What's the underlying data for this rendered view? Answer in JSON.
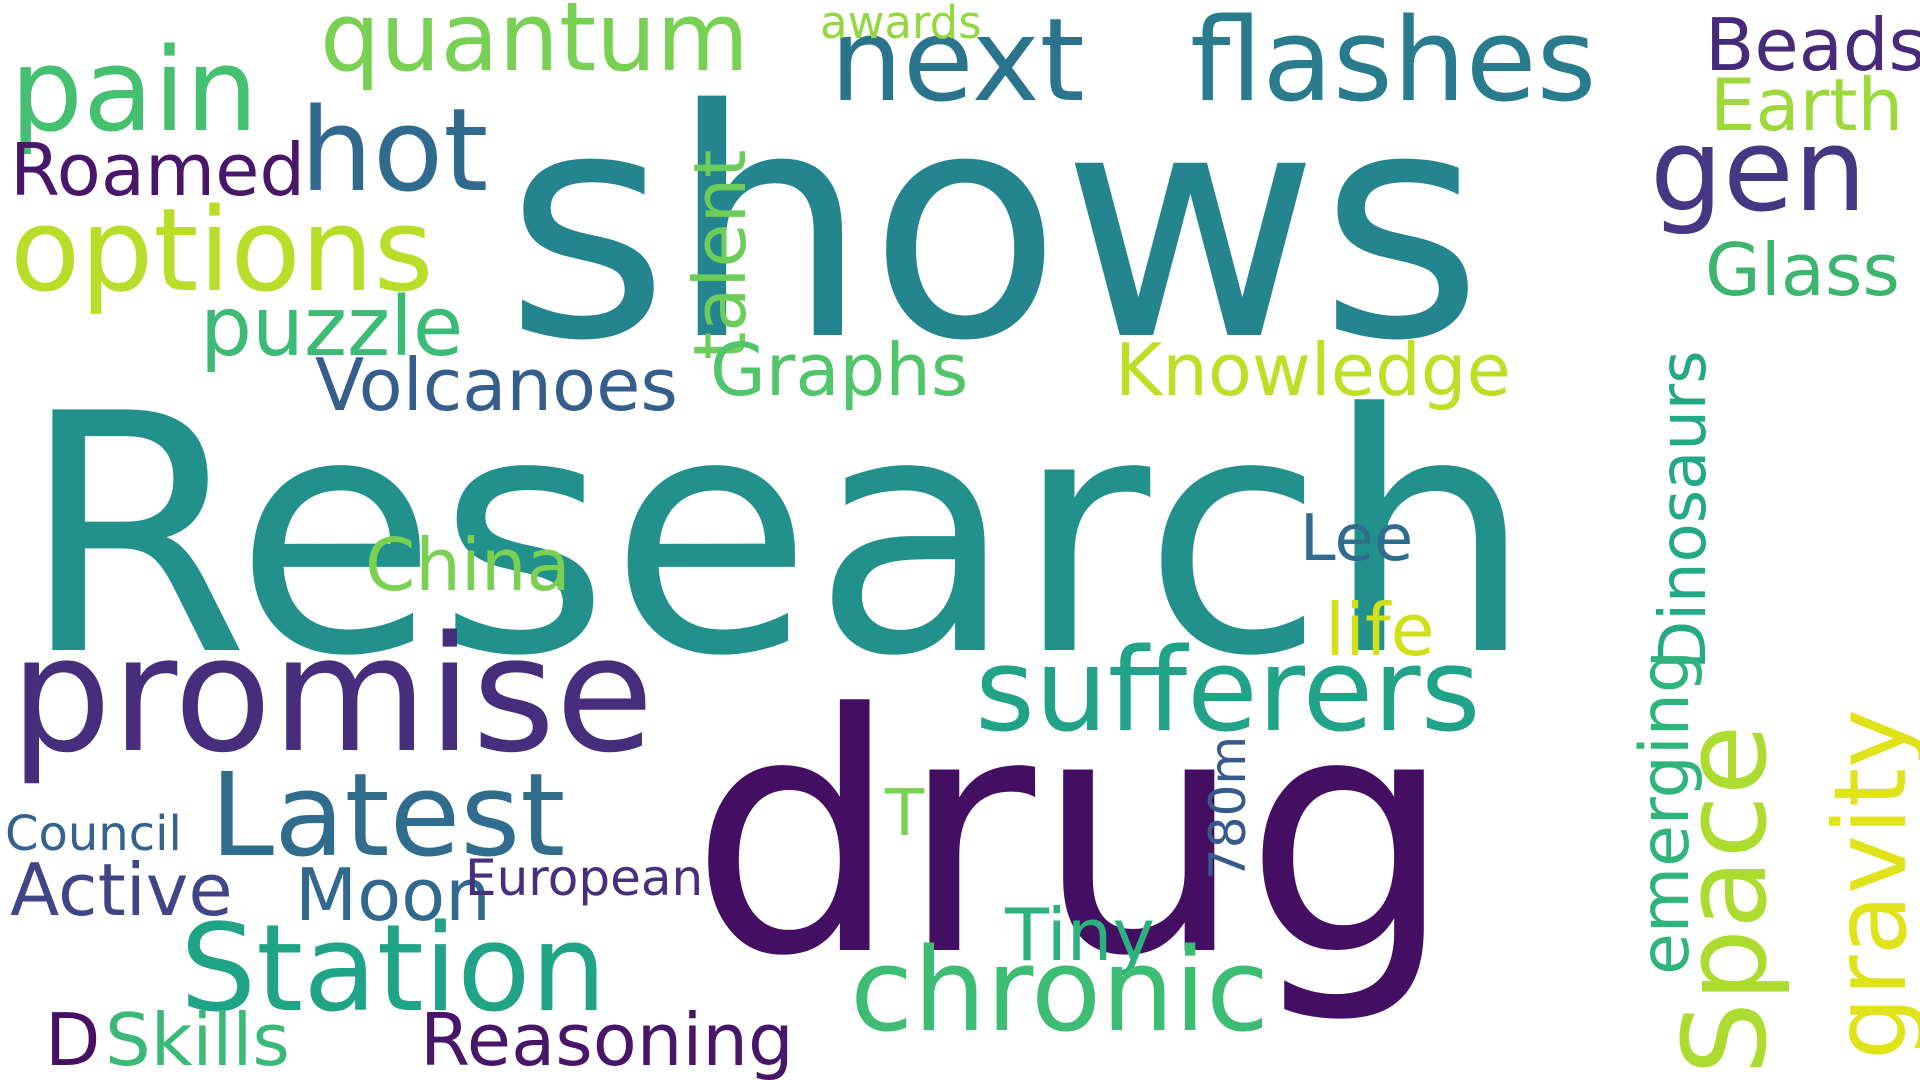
{
  "words": [
    {
      "text": "Research",
      "color": "#22918b"
    },
    {
      "text": "shows",
      "color": "#25858e"
    },
    {
      "text": "drug",
      "color": "#440f62"
    },
    {
      "text": "promise",
      "color": "#472e7c"
    },
    {
      "text": "next",
      "color": "#2b748e"
    },
    {
      "text": "flashes",
      "color": "#287c8e"
    },
    {
      "text": "pain",
      "color": "#45bf70"
    },
    {
      "text": "quantum",
      "color": "#78d152"
    },
    {
      "text": "awards",
      "color": "#93d741"
    },
    {
      "text": "Beads",
      "color": "#472a7a"
    },
    {
      "text": "Earth",
      "color": "#9dd93b"
    },
    {
      "text": "hot",
      "color": "#306a8e"
    },
    {
      "text": "gen",
      "color": "#453781"
    },
    {
      "text": "Roamed",
      "color": "#481769"
    },
    {
      "text": "options",
      "color": "#b8de29"
    },
    {
      "text": "Glass",
      "color": "#3eb56f"
    },
    {
      "text": "talent",
      "color": "#6ccd5a"
    },
    {
      "text": "puzzle",
      "color": "#3bbb75"
    },
    {
      "text": "Graphs",
      "color": "#51c569"
    },
    {
      "text": "Knowledge",
      "color": "#bddf26"
    },
    {
      "text": "Volcanoes",
      "color": "#355e8d"
    },
    {
      "text": "Dinosaurs",
      "color": "#23a983"
    },
    {
      "text": "China",
      "color": "#7ad151"
    },
    {
      "text": "Lee",
      "color": "#2f6c8e"
    },
    {
      "text": "life",
      "color": "#d0e11c"
    },
    {
      "text": "sufferers",
      "color": "#20a386"
    },
    {
      "text": "Latest",
      "color": "#2f6c8e"
    },
    {
      "text": "Space",
      "color": "#addc30"
    },
    {
      "text": "gravity",
      "color": "#e0e31a"
    },
    {
      "text": "emerging",
      "color": "#2fb47c"
    },
    {
      "text": "T",
      "color": "#79d151"
    },
    {
      "text": "780m",
      "color": "#38598c"
    },
    {
      "text": "Council",
      "color": "#33638d"
    },
    {
      "text": "Active",
      "color": "#414487"
    },
    {
      "text": "Moon",
      "color": "#31688e"
    },
    {
      "text": "European",
      "color": "#46307e"
    },
    {
      "text": "Station",
      "color": "#20a486"
    },
    {
      "text": "Tiny",
      "color": "#2db27d"
    },
    {
      "text": "chronic",
      "color": "#3dbc74"
    },
    {
      "text": "D",
      "color": "#471063"
    },
    {
      "text": "Skills",
      "color": "#3aba76"
    },
    {
      "text": "Reasoning",
      "color": "#481668"
    }
  ]
}
